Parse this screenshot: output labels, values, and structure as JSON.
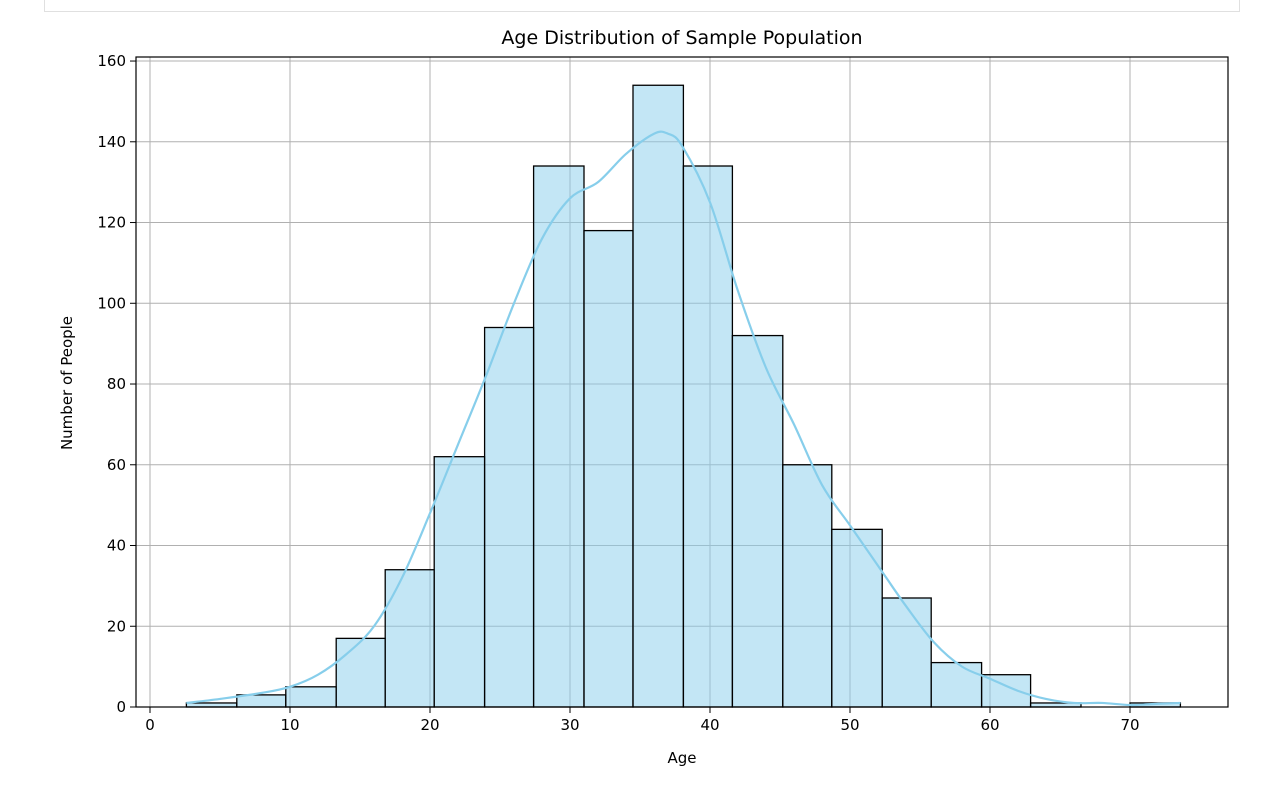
{
  "chart_data": {
    "type": "bar",
    "title": "Age Distribution of Sample Population",
    "xlabel": "Age",
    "ylabel": "Number of People",
    "xlim": [
      -1,
      77
    ],
    "ylim": [
      0,
      161
    ],
    "xticks": [
      0,
      10,
      20,
      30,
      40,
      50,
      60,
      70
    ],
    "yticks": [
      0,
      20,
      40,
      60,
      80,
      100,
      120,
      140,
      160
    ],
    "grid": true,
    "bar_color": "#87ceeb",
    "bar_alpha": 0.5,
    "bar_edge_color": "#000000",
    "kde_color": "#87ceeb",
    "bins": [
      {
        "x0": 2.6,
        "x1": 6.2,
        "count": 1
      },
      {
        "x0": 6.2,
        "x1": 9.7,
        "count": 3
      },
      {
        "x0": 9.7,
        "x1": 13.3,
        "count": 5
      },
      {
        "x0": 13.3,
        "x1": 16.8,
        "count": 17
      },
      {
        "x0": 16.8,
        "x1": 20.3,
        "count": 34
      },
      {
        "x0": 20.3,
        "x1": 23.9,
        "count": 62
      },
      {
        "x0": 23.9,
        "x1": 27.4,
        "count": 94
      },
      {
        "x0": 27.4,
        "x1": 31.0,
        "count": 134
      },
      {
        "x0": 31.0,
        "x1": 34.5,
        "count": 118
      },
      {
        "x0": 34.5,
        "x1": 38.1,
        "count": 154
      },
      {
        "x0": 38.1,
        "x1": 41.6,
        "count": 134
      },
      {
        "x0": 41.6,
        "x1": 45.2,
        "count": 92
      },
      {
        "x0": 45.2,
        "x1": 48.7,
        "count": 60
      },
      {
        "x0": 48.7,
        "x1": 52.3,
        "count": 44
      },
      {
        "x0": 52.3,
        "x1": 55.8,
        "count": 27
      },
      {
        "x0": 55.8,
        "x1": 59.4,
        "count": 11
      },
      {
        "x0": 59.4,
        "x1": 62.9,
        "count": 8
      },
      {
        "x0": 62.9,
        "x1": 66.5,
        "count": 1
      },
      {
        "x0": 66.5,
        "x1": 70.0,
        "count": 0
      },
      {
        "x0": 70.0,
        "x1": 73.6,
        "count": 1
      }
    ],
    "kde": {
      "x": [
        2.6,
        5,
        8,
        10,
        12,
        14,
        16,
        18,
        20,
        22,
        24,
        26,
        28,
        30,
        32,
        34,
        36,
        37,
        38,
        40,
        42,
        44,
        46,
        48,
        50,
        52,
        54,
        56,
        58,
        60,
        62,
        64,
        66,
        68,
        70,
        72,
        73.6
      ],
      "y": [
        1,
        2,
        3.5,
        5,
        8,
        13,
        20,
        32,
        48,
        65,
        82,
        100,
        116,
        126,
        130,
        137,
        142,
        142,
        139,
        125,
        103,
        84,
        70,
        55,
        45,
        35,
        25,
        16,
        10,
        7,
        4,
        2,
        1,
        1,
        0.5,
        0.8,
        1
      ]
    }
  }
}
